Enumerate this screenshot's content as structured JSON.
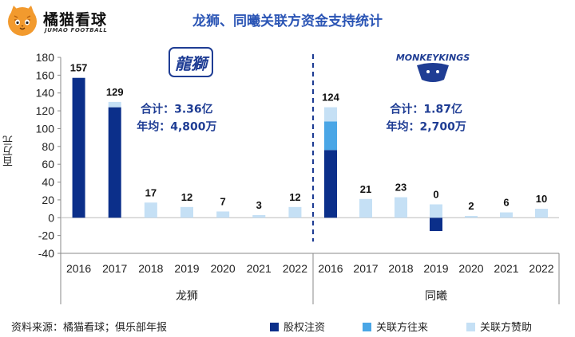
{
  "header": {
    "brand_name": "橘猫看球",
    "brand_sub": "JUMAO FOOTBALL",
    "title": "龙狮、同曦关联方资金支持统计"
  },
  "footer": {
    "source": "资料来源：橘猫看球；俱乐部年报"
  },
  "colors": {
    "equity": "#0b2f8a",
    "related_transfer": "#4aa6e6",
    "related_sponsor": "#c5e0f5",
    "annotation": "#1f3d94",
    "title": "#2b55b5"
  },
  "chart_data": {
    "type": "bar",
    "stacked": true,
    "ylabel": "百万元",
    "ylim": [
      -40,
      180
    ],
    "yticks": [
      -40,
      -20,
      0,
      20,
      40,
      60,
      80,
      100,
      120,
      140,
      160,
      180
    ],
    "grid": false,
    "legend": "bottom",
    "series_names": [
      "股权注资",
      "关联方往来",
      "关联方赞助"
    ],
    "groups": [
      {
        "name": "龙狮",
        "logo_text": "龍獅",
        "summary": [
          "合计：3.36亿",
          "年均：4,800万"
        ],
        "years": [
          "2016",
          "2017",
          "2018",
          "2019",
          "2020",
          "2021",
          "2022"
        ],
        "totals": [
          157,
          129,
          17,
          12,
          7,
          3,
          12
        ],
        "equity": [
          157,
          124,
          0,
          0,
          0,
          0,
          0
        ],
        "related_transfer": [
          0,
          0,
          0,
          0,
          0,
          0,
          0
        ],
        "related_sponsor": [
          0,
          6,
          17,
          12,
          7,
          3,
          12
        ]
      },
      {
        "name": "同曦",
        "logo_text": "MONKEYKINGS",
        "summary": [
          "合计：1.87亿",
          "年均：2,700万"
        ],
        "years": [
          "2016",
          "2017",
          "2018",
          "2019",
          "2020",
          "2021",
          "2022"
        ],
        "totals": [
          124,
          21,
          23,
          0,
          2,
          6,
          10
        ],
        "equity": [
          76,
          0,
          0,
          -15,
          0,
          0,
          0
        ],
        "related_transfer": [
          32,
          0,
          0,
          0,
          0,
          0,
          0
        ],
        "related_sponsor": [
          16,
          21,
          23,
          15,
          2,
          6,
          10
        ]
      }
    ]
  }
}
